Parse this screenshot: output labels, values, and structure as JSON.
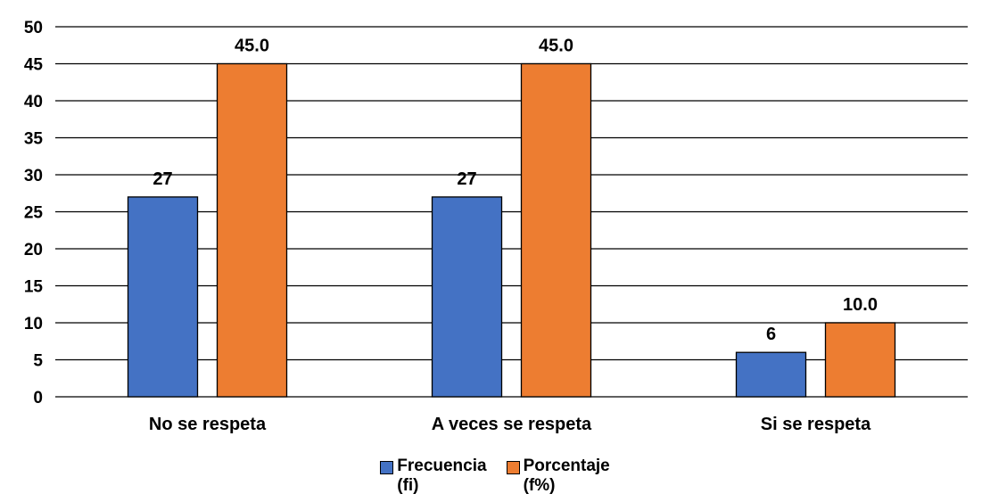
{
  "chart_data": {
    "type": "bar",
    "categories": [
      "No se respeta",
      "A veces se respeta",
      "Si se respeta"
    ],
    "series": [
      {
        "name": "Frecuencia\n(fi)",
        "color": "#4472C4",
        "values": [
          27,
          27,
          6
        ],
        "labels": [
          "27",
          "27",
          "6"
        ]
      },
      {
        "name": "Porcentaje\n(f%)",
        "color": "#ED7D31",
        "values": [
          45.0,
          45.0,
          10.0
        ],
        "labels": [
          "45.0",
          "45.0",
          "10.0"
        ]
      }
    ],
    "ylim": [
      0,
      50
    ],
    "yticks": [
      "0",
      "5",
      "10",
      "15",
      "20",
      "25",
      "30",
      "35",
      "40",
      "45",
      "50"
    ],
    "grid": true,
    "legend_position": "bottom"
  }
}
